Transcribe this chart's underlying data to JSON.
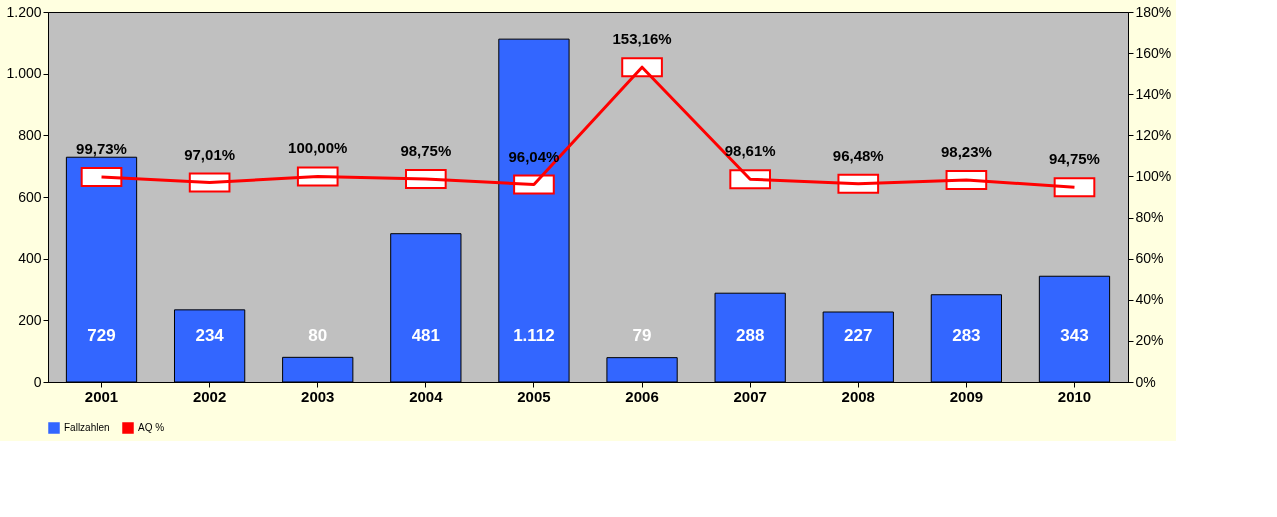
{
  "chart_data": {
    "type": "bar",
    "categories": [
      "2001",
      "2002",
      "2003",
      "2004",
      "2005",
      "2006",
      "2007",
      "2008",
      "2009",
      "2010"
    ],
    "series": [
      {
        "name": "Fallzahlen",
        "color": "#3366ff",
        "values": [
          729,
          234,
          80,
          481,
          1112,
          79,
          288,
          227,
          283,
          343
        ],
        "value_labels": [
          "729",
          "234",
          "80",
          "481",
          "1.112",
          "79",
          "288",
          "227",
          "283",
          "343"
        ]
      },
      {
        "name": "AQ %",
        "type": "line",
        "axis": "y2",
        "color": "#ff0000",
        "marker": "square",
        "values": [
          99.73,
          97.01,
          100.0,
          98.75,
          96.04,
          153.16,
          98.61,
          96.48,
          98.23,
          94.75
        ],
        "value_labels": [
          "99,73%",
          "97,01%",
          "100,00%",
          "98,75%",
          "96,04%",
          "153,16%",
          "98,61%",
          "96,48%",
          "98,23%",
          "94,75%"
        ]
      }
    ],
    "ylim": [
      0,
      1200
    ],
    "yticks": [
      0,
      200,
      400,
      600,
      800,
      {
        "value": 1000,
        "label": "1.000"
      },
      {
        "value": 1200,
        "label": "1.200"
      }
    ],
    "y2lim": [
      0,
      180
    ],
    "y2ticks": [
      {
        "value": 0,
        "label": "0%"
      },
      {
        "value": 20,
        "label": "20%"
      },
      {
        "value": 40,
        "label": "40%"
      },
      {
        "value": 60,
        "label": "60%"
      },
      {
        "value": 80,
        "label": "80%"
      },
      {
        "value": 100,
        "label": "100%"
      },
      {
        "value": 120,
        "label": "120%"
      },
      {
        "value": 140,
        "label": "140%"
      },
      {
        "value": 160,
        "label": "160%"
      },
      {
        "value": 180,
        "label": "180%"
      }
    ],
    "grid": false,
    "legend": "bottom"
  }
}
